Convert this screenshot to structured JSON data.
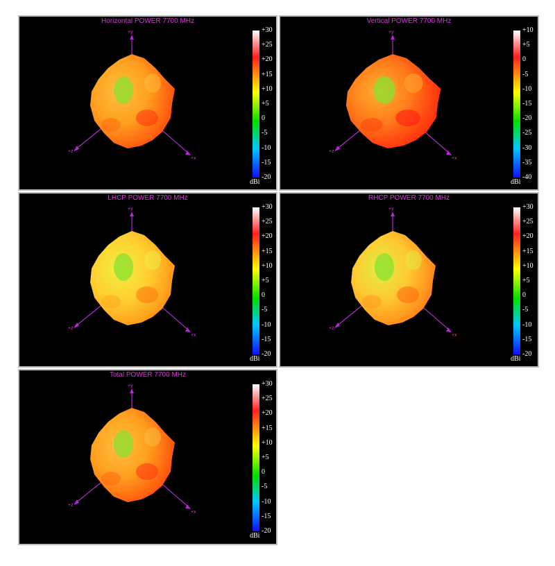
{
  "chart_data": [
    {
      "type": "3d-radiation-pattern",
      "title": "Horizontal POWER 7700  MHz",
      "colorbar": {
        "ticks": [
          "+30",
          "+25",
          "+20",
          "+15",
          "+10",
          "+5",
          "0",
          "-5",
          "-10",
          "-15",
          "-20"
        ],
        "unit": "dBi",
        "range": [
          -20,
          30
        ]
      },
      "axes": [
        "+y",
        "+z",
        "+x"
      ],
      "palette": "hot-orange"
    },
    {
      "type": "3d-radiation-pattern",
      "title": "Vertical POWER 7700  MHz",
      "colorbar": {
        "ticks": [
          "+10",
          "+5",
          "0",
          "-5",
          "-10",
          "-15",
          "-20",
          "-25",
          "-30",
          "-35",
          "-40"
        ],
        "unit": "dBi",
        "range": [
          -40,
          10
        ]
      },
      "axes": [
        "+y",
        "+z",
        "+x"
      ],
      "palette": "hot-red"
    },
    {
      "type": "3d-radiation-pattern",
      "title": "LHCP POWER 7700  MHz",
      "colorbar": {
        "ticks": [
          "+30",
          "+25",
          "+20",
          "+15",
          "+10",
          "+5",
          "0",
          "-5",
          "-10",
          "-15",
          "-20"
        ],
        "unit": "dBi",
        "range": [
          -20,
          30
        ]
      },
      "axes": [
        "+y",
        "+z",
        "+x"
      ],
      "palette": "yellow-orange"
    },
    {
      "type": "3d-radiation-pattern",
      "title": "RHCP POWER 7700  MHz",
      "colorbar": {
        "ticks": [
          "+30",
          "+25",
          "+20",
          "+15",
          "+10",
          "+5",
          "0",
          "-5",
          "-10",
          "-15",
          "-20"
        ],
        "unit": "dBi",
        "range": [
          -20,
          30
        ]
      },
      "axes": [
        "+y",
        "+z",
        "+x"
      ],
      "palette": "yellow-orange-green"
    },
    {
      "type": "3d-radiation-pattern",
      "title": "Total POWER 7700  MHz",
      "colorbar": {
        "ticks": [
          "+30",
          "+25",
          "+20",
          "+15",
          "+10",
          "+5",
          "0",
          "-5",
          "-10",
          "-15",
          "-20"
        ],
        "unit": "dBi",
        "range": [
          -20,
          30
        ]
      },
      "axes": [
        "+y",
        "+z",
        "+x"
      ],
      "palette": "hot-orange"
    }
  ],
  "colors": {
    "background": "#000000",
    "title": "#d23cd2",
    "axis": "#b02ad0",
    "colorbar_stops": [
      "#ffffff",
      "#ff2020",
      "#ffff00",
      "#00e000",
      "#00c8ff",
      "#1010ff"
    ]
  }
}
